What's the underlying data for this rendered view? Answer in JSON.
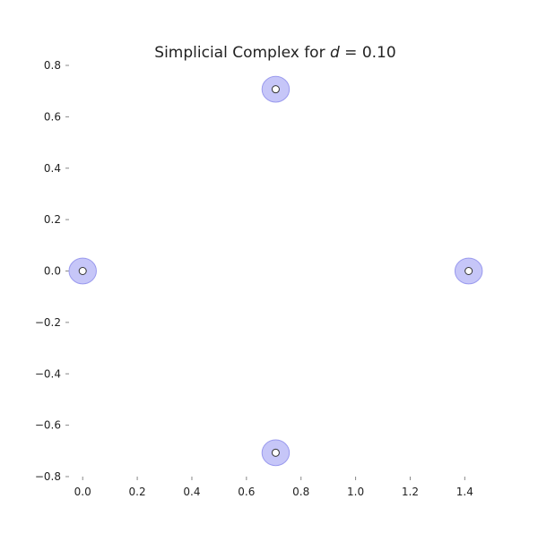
{
  "chart_data": {
    "type": "scatter",
    "title": "Simplicial Complex for d = 0.10",
    "title_parts": {
      "prefix": "Simplicial Complex for ",
      "variable": "d",
      "suffix": " = 0.10"
    },
    "xlabel": "",
    "ylabel": "",
    "xlim": [
      -0.05,
      1.4646
    ],
    "ylim": [
      -0.8,
      0.8
    ],
    "xticks": [
      0.0,
      0.2,
      0.4,
      0.6,
      0.8,
      1.0,
      1.2,
      1.4
    ],
    "xtick_labels": [
      "0.0",
      "0.2",
      "0.4",
      "0.6",
      "0.8",
      "1.0",
      "1.2",
      "1.4"
    ],
    "yticks": [
      0.8,
      0.6,
      0.4,
      0.2,
      0.0,
      -0.2,
      -0.4,
      -0.6,
      -0.8
    ],
    "ytick_labels": [
      "0.8",
      "0.6",
      "0.4",
      "0.2",
      "0.0",
      "−0.2",
      "−0.4",
      "−0.6",
      "−0.8"
    ],
    "grid": false,
    "legend": "none",
    "radius": 0.05,
    "points": [
      {
        "x": 0.0,
        "y": 0.0
      },
      {
        "x": 0.7071,
        "y": 0.7071
      },
      {
        "x": 1.4142,
        "y": 0.0
      },
      {
        "x": 0.7071,
        "y": -0.7071
      }
    ],
    "colors": {
      "disk_fill": "#b3b3f5",
      "disk_stroke": "#9a9aee",
      "point_fill": "#ffffff",
      "point_stroke": "#333333"
    }
  }
}
